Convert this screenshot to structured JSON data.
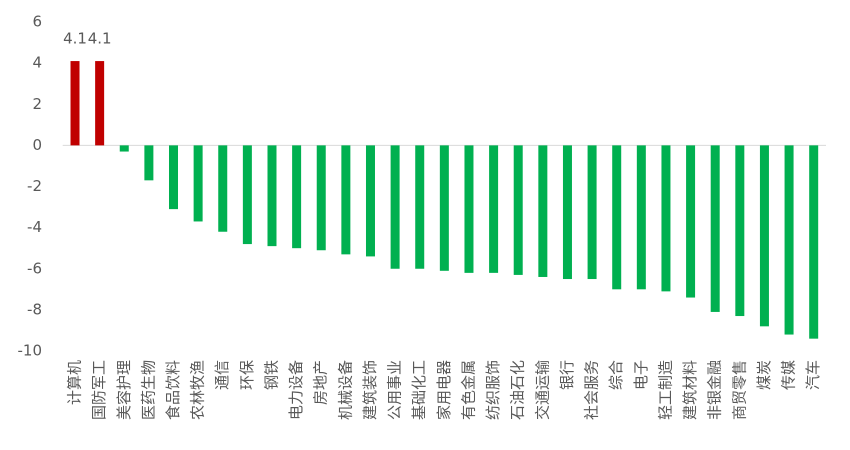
{
  "chart_data": {
    "type": "bar",
    "categories": [
      "计算机",
      "国防军工",
      "美容护理",
      "医药生物",
      "食品饮料",
      "农林牧渔",
      "通信",
      "环保",
      "钢铁",
      "电力设备",
      "房地产",
      "机械设备",
      "建筑装饰",
      "公用事业",
      "基础化工",
      "家用电器",
      "有色金属",
      "纺织服饰",
      "石油石化",
      "交通运输",
      "银行",
      "社会服务",
      "综合",
      "电子",
      "轻工制造",
      "建筑材料",
      "非银金融",
      "商贸零售",
      "煤炭",
      "传媒",
      "汽车"
    ],
    "values": [
      4.1,
      4.1,
      -0.3,
      -1.7,
      -3.1,
      -3.7,
      -4.2,
      -4.8,
      -4.9,
      -5.0,
      -5.1,
      -5.3,
      -5.4,
      -6.0,
      -6.0,
      -6.1,
      -6.2,
      -6.2,
      -6.3,
      -6.4,
      -6.5,
      -6.5,
      -7.0,
      -7.0,
      -7.1,
      -7.4,
      -8.1,
      -8.3,
      -8.8,
      -9.2,
      -9.4
    ],
    "color_positive": "#c00000",
    "color_negative": "#00b050",
    "label_positive": true,
    "ylim": [
      -10,
      6
    ],
    "yticks": [
      -10,
      -8,
      -6,
      -4,
      -2,
      0,
      2,
      4,
      6
    ]
  }
}
